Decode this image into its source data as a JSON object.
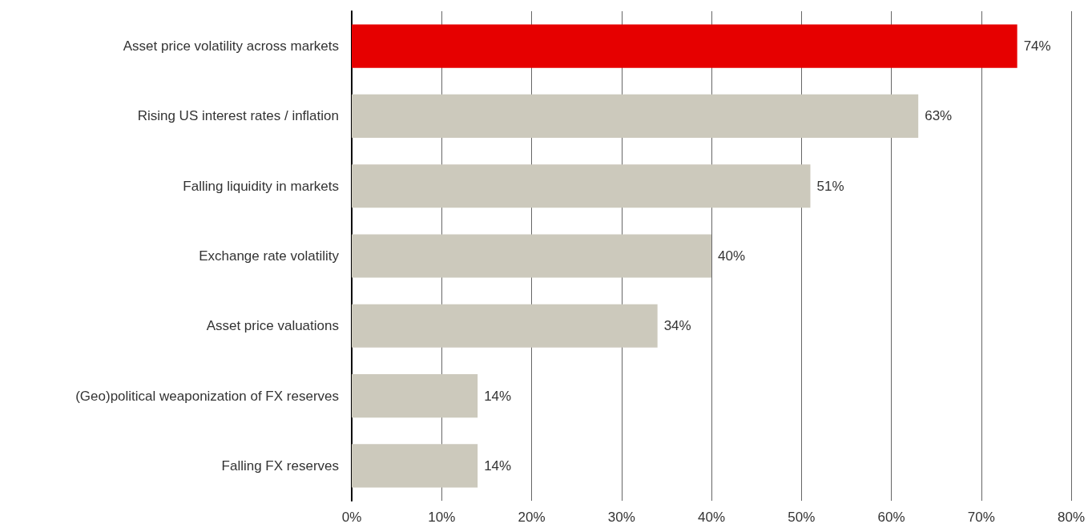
{
  "chart_data": {
    "type": "bar",
    "orientation": "horizontal",
    "categories": [
      "Asset price volatility across markets",
      "Rising US interest rates / inflation",
      "Falling liquidity in markets",
      "Exchange rate volatility",
      "Asset price valuations",
      "(Geo)political weaponization of FX reserves",
      "Falling FX reserves"
    ],
    "values": [
      74,
      63,
      51,
      40,
      34,
      14,
      14
    ],
    "colors": [
      "#e60000",
      "#ccc9bc",
      "#ccc9bc",
      "#ccc9bc",
      "#ccc9bc",
      "#ccc9bc",
      "#ccc9bc"
    ],
    "value_labels": [
      "74%",
      "63%",
      "51%",
      "40%",
      "34%",
      "14%",
      "14%"
    ],
    "xlim": [
      0,
      80
    ],
    "xticks": [
      {
        "value": 0,
        "label": "0%"
      },
      {
        "value": 10,
        "label": "10%"
      },
      {
        "value": 20,
        "label": "20%"
      },
      {
        "value": 30,
        "label": "30%"
      },
      {
        "value": 40,
        "label": "40%"
      },
      {
        "value": 50,
        "label": "50%"
      },
      {
        "value": 60,
        "label": "60%"
      },
      {
        "value": 70,
        "label": "70%"
      },
      {
        "value": 80,
        "label": "80%"
      }
    ],
    "grid": "x"
  }
}
